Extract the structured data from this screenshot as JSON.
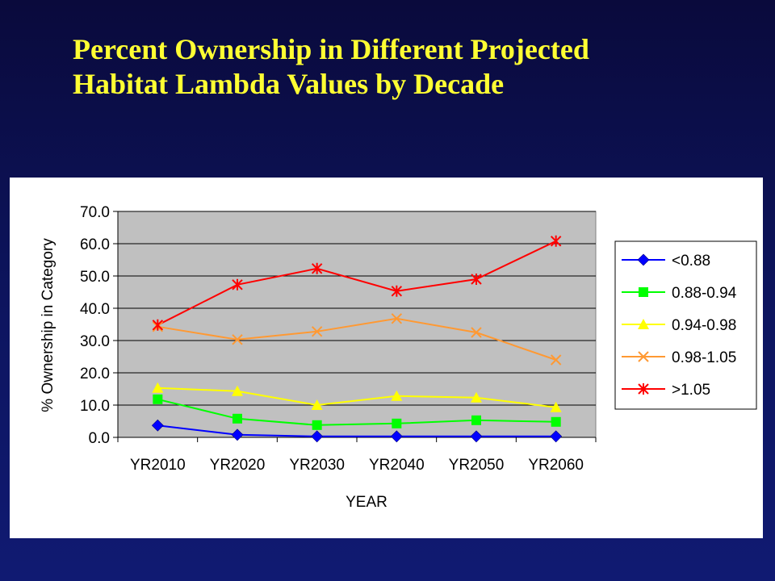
{
  "slide": {
    "title_line1": "Percent Ownership in Different Projected",
    "title_line2": "Habitat Lambda Values by Decade"
  },
  "chart_data": {
    "type": "line",
    "title": "",
    "xlabel": "YEAR",
    "ylabel": "% Ownership in Category",
    "categories": [
      "YR2010",
      "YR2020",
      "YR2030",
      "YR2040",
      "YR2050",
      "YR2060"
    ],
    "ylim": [
      0,
      70
    ],
    "yticks": [
      "0.0",
      "10.0",
      "20.0",
      "30.0",
      "40.0",
      "50.0",
      "60.0",
      "70.0"
    ],
    "grid": "horizontal",
    "legend": "right",
    "plot_background": "#c0c0c0",
    "series": [
      {
        "name": "<0.88",
        "values": [
          3.7,
          0.8,
          0.3,
          0.3,
          0.3,
          0.3
        ],
        "color": "#0000ff",
        "marker": "diamond"
      },
      {
        "name": "0.88-0.94",
        "values": [
          11.8,
          5.8,
          3.8,
          4.3,
          5.3,
          4.8
        ],
        "color": "#00ff00",
        "marker": "square"
      },
      {
        "name": "0.94-0.98",
        "values": [
          15.3,
          14.3,
          10.0,
          12.8,
          12.3,
          9.3
        ],
        "color": "#ffff00",
        "marker": "triangle"
      },
      {
        "name": "0.98-1.05",
        "values": [
          34.3,
          30.3,
          32.8,
          36.8,
          32.5,
          24.0
        ],
        "color": "#ff9933",
        "marker": "x"
      },
      {
        "name": ">1.05",
        "values": [
          34.8,
          47.3,
          52.3,
          45.3,
          49.0,
          60.8
        ],
        "color": "#ff0000",
        "marker": "star"
      }
    ]
  }
}
